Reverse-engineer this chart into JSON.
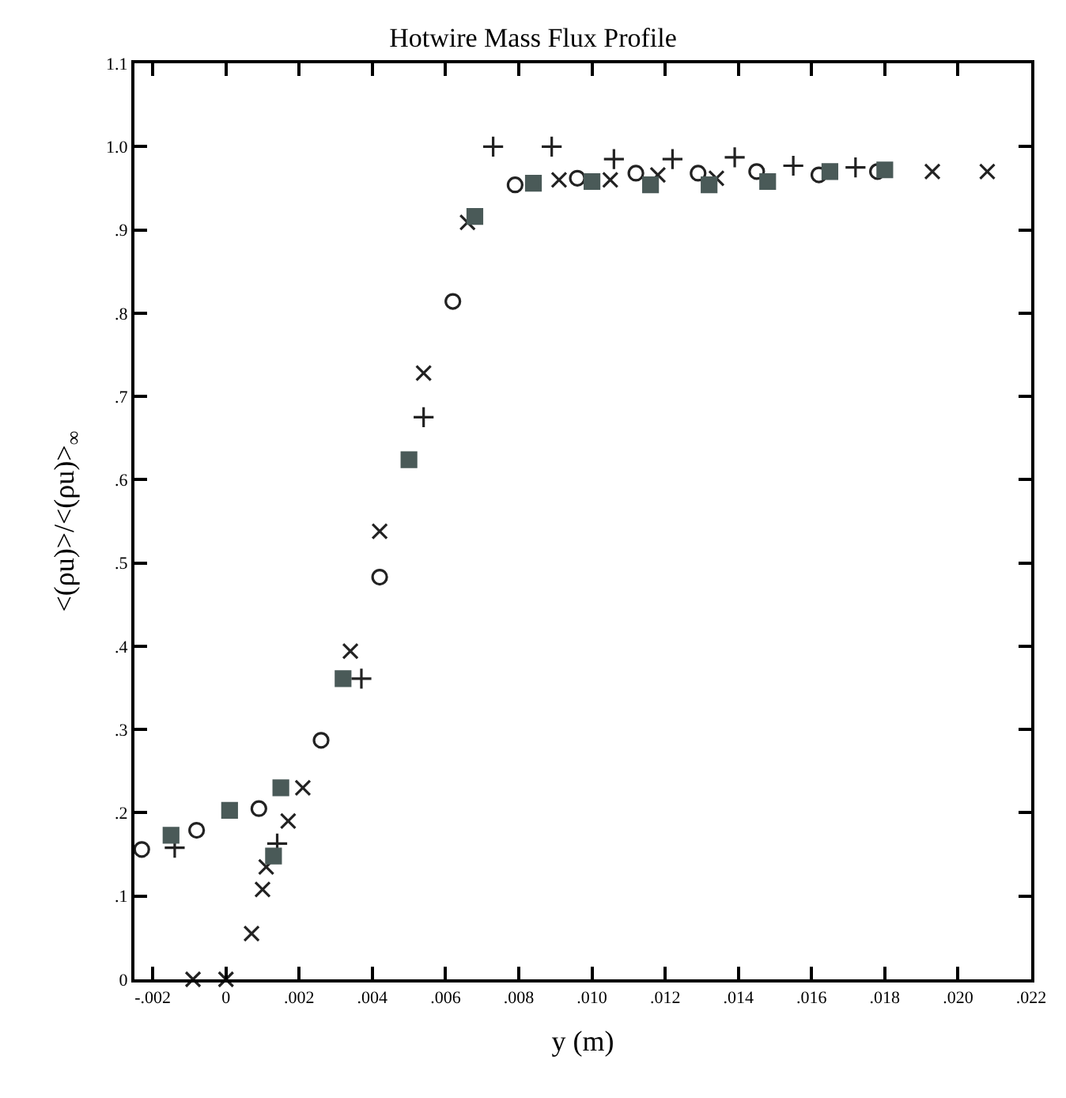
{
  "chart_data": {
    "type": "scatter",
    "title": "Hotwire Mass Flux Profile",
    "xlabel": "y (m)",
    "ylabel": "<(ρu)>/<(ρu)>$_{∞}$",
    "xlim": [
      -0.0025,
      0.022
    ],
    "ylim": [
      0,
      1.1
    ],
    "xticks": [
      {
        "value": -0.002,
        "label": "-.002"
      },
      0,
      {
        "value": 0.002,
        "label": ".002"
      },
      {
        "value": 0.004,
        "label": ".004"
      },
      {
        "value": 0.006,
        "label": ".006"
      },
      {
        "value": 0.008,
        "label": ".008"
      },
      {
        "value": 0.01,
        "label": ".010"
      },
      {
        "value": 0.012,
        "label": ".012"
      },
      {
        "value": 0.014,
        "label": ".014"
      },
      {
        "value": 0.016,
        "label": ".016"
      },
      {
        "value": 0.018,
        "label": ".018"
      },
      {
        "value": 0.02,
        "label": ".020"
      },
      {
        "value": 0.022,
        "label": ".022"
      }
    ],
    "yticks": [
      0,
      {
        "value": 0.1,
        "label": ".1"
      },
      {
        "value": 0.2,
        "label": ".2"
      },
      {
        "value": 0.3,
        "label": ".3"
      },
      {
        "value": 0.4,
        "label": ".4"
      },
      {
        "value": 0.5,
        "label": ".5"
      },
      {
        "value": 0.6,
        "label": ".6"
      },
      {
        "value": 0.7,
        "label": ".7"
      },
      {
        "value": 0.8,
        "label": ".8"
      },
      {
        "value": 0.9,
        "label": ".9"
      },
      {
        "value": 1.0,
        "label": "1.0"
      },
      {
        "value": 1.1,
        "label": "1.1"
      }
    ],
    "series": [
      {
        "marker": "circle",
        "color": "#222222",
        "x": [
          -0.0023,
          -0.0008,
          0.0009,
          0.0026,
          0.0042,
          0.0062,
          0.0079,
          0.0096,
          0.0112,
          0.0129,
          0.0145,
          0.0162,
          0.0178
        ],
        "values": [
          0.156,
          0.179,
          0.205,
          0.287,
          0.483,
          0.814,
          0.954,
          0.962,
          0.968,
          0.968,
          0.97,
          0.966,
          0.97
        ]
      },
      {
        "marker": "cross",
        "color": "#222222",
        "x": [
          -0.0014,
          0.0014,
          0.0037,
          0.0054,
          0.0073,
          0.0089,
          0.0106,
          0.0122,
          0.0139,
          0.0155,
          0.0172
        ],
        "values": [
          0.158,
          0.163,
          0.361,
          0.675,
          1.0,
          1.0,
          0.985,
          0.985,
          0.987,
          0.977,
          0.975
        ]
      },
      {
        "marker": "x",
        "color": "#222222",
        "x": [
          -0.0009,
          0.0,
          0.0007,
          0.001,
          0.0011,
          0.0017,
          0.0021,
          0.0034,
          0.0042,
          0.0054,
          0.0066,
          0.0091,
          0.0105,
          0.0118,
          0.0134,
          0.0193,
          0.0208
        ],
        "values": [
          0.0,
          0.0,
          0.055,
          0.108,
          0.135,
          0.19,
          0.23,
          0.394,
          0.538,
          0.728,
          0.909,
          0.96,
          0.96,
          0.966,
          0.962,
          0.97,
          0.97
        ]
      },
      {
        "marker": "square",
        "color": "#4a5a58",
        "x": [
          -0.0015,
          0.0001,
          0.0013,
          0.0015,
          0.0032,
          0.005,
          0.0068,
          0.0084,
          0.01,
          0.0116,
          0.0132,
          0.0148,
          0.0165,
          0.018
        ],
        "values": [
          0.173,
          0.203,
          0.148,
          0.23,
          0.361,
          0.624,
          0.916,
          0.956,
          0.958,
          0.954,
          0.954,
          0.958,
          0.97,
          0.972
        ]
      }
    ]
  }
}
